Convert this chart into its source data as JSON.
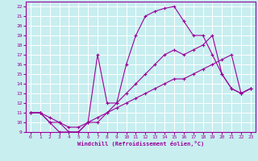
{
  "xlabel": "Windchill (Refroidissement éolien,°C)",
  "bg_color": "#c8eef0",
  "line_color": "#990099",
  "grid_color": "#ffffff",
  "xlim": [
    -0.5,
    23.5
  ],
  "ylim": [
    9,
    22.5
  ],
  "xticks": [
    0,
    1,
    2,
    3,
    4,
    5,
    6,
    7,
    8,
    9,
    10,
    11,
    12,
    13,
    14,
    15,
    16,
    17,
    18,
    19,
    20,
    21,
    22,
    23
  ],
  "yticks": [
    9,
    10,
    11,
    12,
    13,
    14,
    15,
    16,
    17,
    18,
    19,
    20,
    21,
    22
  ],
  "line1_x": [
    0,
    1,
    2,
    3,
    4,
    5,
    6,
    7,
    8,
    9,
    10,
    11,
    12,
    13,
    14,
    15,
    16,
    17,
    18,
    19,
    20,
    21,
    22,
    23
  ],
  "line1_y": [
    11,
    11,
    10,
    9,
    9,
    9,
    10,
    17,
    12,
    12,
    16,
    19,
    21,
    21.5,
    21.8,
    22,
    20.5,
    19,
    19,
    17,
    15,
    13.5,
    13,
    13.5
  ],
  "line2_x": [
    0,
    1,
    2,
    3,
    4,
    5,
    6,
    7,
    8,
    9,
    10,
    11,
    12,
    13,
    14,
    15,
    16,
    17,
    18,
    19,
    20,
    21,
    22,
    23
  ],
  "line2_y": [
    11,
    11,
    10,
    10,
    9,
    9,
    10,
    10,
    11,
    12,
    13,
    14,
    15,
    16,
    17,
    17.5,
    17,
    17.5,
    18,
    19,
    15,
    13.5,
    13,
    13.5
  ],
  "line3_x": [
    0,
    1,
    2,
    3,
    4,
    5,
    6,
    7,
    8,
    9,
    10,
    11,
    12,
    13,
    14,
    15,
    16,
    17,
    18,
    19,
    20,
    21,
    22,
    23
  ],
  "line3_y": [
    11,
    11,
    10.5,
    10,
    9.5,
    9.5,
    10,
    10.5,
    11,
    11.5,
    12,
    12.5,
    13,
    13.5,
    14,
    14.5,
    14.5,
    15,
    15.5,
    16,
    16.5,
    17,
    13,
    13.5
  ]
}
